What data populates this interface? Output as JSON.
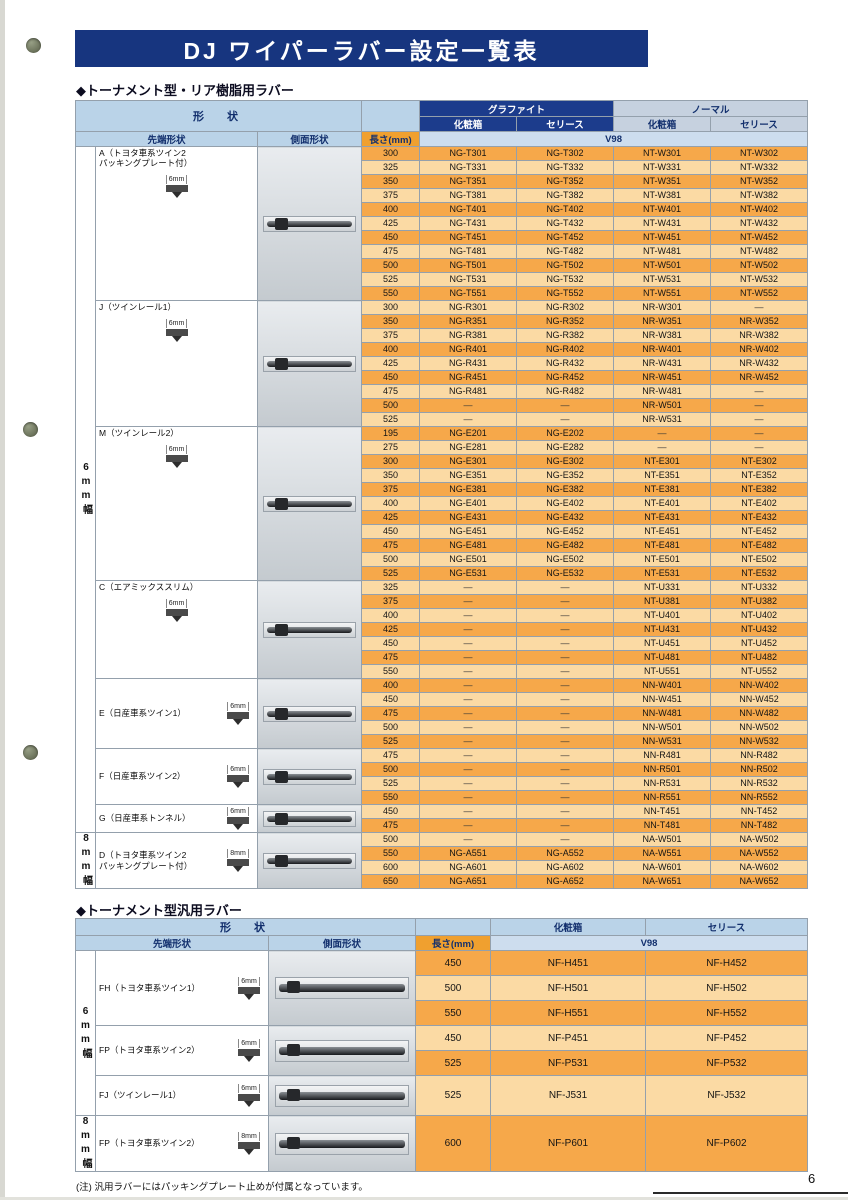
{
  "page": {
    "title": "DJ ワイパーラバー設定一覧表",
    "page_number": "6",
    "footnote": "(注) 汎用ラバーにはパッキングプレート止めが付属となっています。"
  },
  "colors": {
    "banner": "#17357f",
    "header_dark_blue": "#1c3c8c",
    "header_light_blue": "#bad3e8",
    "header_orange": "#f0a02f",
    "row_orange": "#f6a84a",
    "row_light": "#fbdaa4"
  },
  "table1": {
    "section_title": "◆トーナメント型・リア樹脂用ラバー",
    "headers": {
      "shape": "形　状",
      "tip": "先端形状",
      "side": "側面形状",
      "length": "長さ(mm)",
      "graphite": "グラファイト",
      "normal": "ノーマル",
      "box": "化粧箱",
      "series": "セリース",
      "v98": "V98"
    },
    "width_groups": [
      {
        "label": "6mm幅",
        "rows": 49
      },
      {
        "label": "8mm幅",
        "rows": 4
      }
    ],
    "groups": [
      {
        "id": "A",
        "label": "A（トヨタ車系ツイン2",
        "label2": "パッキングプレート付）",
        "mm": "6mm",
        "rows": [
          [
            "300",
            "NG-T301",
            "NG-T302",
            "NT-W301",
            "NT-W302"
          ],
          [
            "325",
            "NG-T331",
            "NG-T332",
            "NT-W331",
            "NT-W332"
          ],
          [
            "350",
            "NG-T351",
            "NG-T352",
            "NT-W351",
            "NT-W352"
          ],
          [
            "375",
            "NG-T381",
            "NG-T382",
            "NT-W381",
            "NT-W382"
          ],
          [
            "400",
            "NG-T401",
            "NG-T402",
            "NT-W401",
            "NT-W402"
          ],
          [
            "425",
            "NG-T431",
            "NG-T432",
            "NT-W431",
            "NT-W432"
          ],
          [
            "450",
            "NG-T451",
            "NG-T452",
            "NT-W451",
            "NT-W452"
          ],
          [
            "475",
            "NG-T481",
            "NG-T482",
            "NT-W481",
            "NT-W482"
          ],
          [
            "500",
            "NG-T501",
            "NG-T502",
            "NT-W501",
            "NT-W502"
          ],
          [
            "525",
            "NG-T531",
            "NG-T532",
            "NT-W531",
            "NT-W532"
          ],
          [
            "550",
            "NG-T551",
            "NG-T552",
            "NT-W551",
            "NT-W552"
          ]
        ]
      },
      {
        "id": "J",
        "label": "J（ツインレール1）",
        "mm": "6mm",
        "rows": [
          [
            "300",
            "NG-R301",
            "NG-R302",
            "NR-W301",
            "―"
          ],
          [
            "350",
            "NG-R351",
            "NG-R352",
            "NR-W351",
            "NR-W352"
          ],
          [
            "375",
            "NG-R381",
            "NG-R382",
            "NR-W381",
            "NR-W382"
          ],
          [
            "400",
            "NG-R401",
            "NG-R402",
            "NR-W401",
            "NR-W402"
          ],
          [
            "425",
            "NG-R431",
            "NG-R432",
            "NR-W431",
            "NR-W432"
          ],
          [
            "450",
            "NG-R451",
            "NG-R452",
            "NR-W451",
            "NR-W452"
          ],
          [
            "475",
            "NG-R481",
            "NG-R482",
            "NR-W481",
            "―"
          ],
          [
            "500",
            "―",
            "―",
            "NR-W501",
            "―"
          ],
          [
            "525",
            "―",
            "―",
            "NR-W531",
            "―"
          ]
        ]
      },
      {
        "id": "M",
        "label": "M（ツインレール2）",
        "mm": "6mm",
        "rows": [
          [
            "195",
            "NG-E201",
            "NG-E202",
            "―",
            "―"
          ],
          [
            "275",
            "NG-E281",
            "NG-E282",
            "―",
            "―"
          ],
          [
            "300",
            "NG-E301",
            "NG-E302",
            "NT-E301",
            "NT-E302"
          ],
          [
            "350",
            "NG-E351",
            "NG-E352",
            "NT-E351",
            "NT-E352"
          ],
          [
            "375",
            "NG-E381",
            "NG-E382",
            "NT-E381",
            "NT-E382"
          ],
          [
            "400",
            "NG-E401",
            "NG-E402",
            "NT-E401",
            "NT-E402"
          ],
          [
            "425",
            "NG-E431",
            "NG-E432",
            "NT-E431",
            "NT-E432"
          ],
          [
            "450",
            "NG-E451",
            "NG-E452",
            "NT-E451",
            "NT-E452"
          ],
          [
            "475",
            "NG-E481",
            "NG-E482",
            "NT-E481",
            "NT-E482"
          ],
          [
            "500",
            "NG-E501",
            "NG-E502",
            "NT-E501",
            "NT-E502"
          ],
          [
            "525",
            "NG-E531",
            "NG-E532",
            "NT-E531",
            "NT-E532"
          ]
        ]
      },
      {
        "id": "C",
        "label": "C（エアミックススリム）",
        "mm": "6mm",
        "rows": [
          [
            "325",
            "―",
            "―",
            "NT-U331",
            "NT-U332"
          ],
          [
            "375",
            "―",
            "―",
            "NT-U381",
            "NT-U382"
          ],
          [
            "400",
            "―",
            "―",
            "NT-U401",
            "NT-U402"
          ],
          [
            "425",
            "―",
            "―",
            "NT-U431",
            "NT-U432"
          ],
          [
            "450",
            "―",
            "―",
            "NT-U451",
            "NT-U452"
          ],
          [
            "475",
            "―",
            "―",
            "NT-U481",
            "NT-U482"
          ],
          [
            "550",
            "―",
            "―",
            "NT-U551",
            "NT-U552"
          ]
        ]
      },
      {
        "id": "E",
        "label": "E（日産車系ツイン1）",
        "mm": "6mm",
        "rows": [
          [
            "400",
            "―",
            "―",
            "NN-W401",
            "NN-W402"
          ],
          [
            "450",
            "―",
            "―",
            "NN-W451",
            "NN-W452"
          ],
          [
            "475",
            "―",
            "―",
            "NN-W481",
            "NN-W482"
          ],
          [
            "500",
            "―",
            "―",
            "NN-W501",
            "NN-W502"
          ],
          [
            "525",
            "―",
            "―",
            "NN-W531",
            "NN-W532"
          ]
        ]
      },
      {
        "id": "F",
        "label": "F（日産車系ツイン2）",
        "mm": "6mm",
        "rows": [
          [
            "475",
            "―",
            "―",
            "NN-R481",
            "NN-R482"
          ],
          [
            "500",
            "―",
            "―",
            "NN-R501",
            "NN-R502"
          ],
          [
            "525",
            "―",
            "―",
            "NN-R531",
            "NN-R532"
          ],
          [
            "550",
            "―",
            "―",
            "NN-R551",
            "NN-R552"
          ]
        ]
      },
      {
        "id": "G",
        "label": "G（日産車系トンネル）",
        "mm": "6mm",
        "rows": [
          [
            "450",
            "―",
            "―",
            "NN-T451",
            "NN-T452"
          ],
          [
            "475",
            "―",
            "―",
            "NN-T481",
            "NN-T482"
          ]
        ]
      },
      {
        "id": "D",
        "label": "D（トヨタ車系ツイン2",
        "label2": "パッキングプレート付）",
        "mm": "8mm",
        "rows": [
          [
            "500",
            "―",
            "―",
            "NA-W501",
            "NA-W502"
          ],
          [
            "550",
            "NG-A551",
            "NG-A552",
            "NA-W551",
            "NA-W552"
          ],
          [
            "600",
            "NG-A601",
            "NG-A602",
            "NA-W601",
            "NA-W602"
          ],
          [
            "650",
            "NG-A651",
            "NG-A652",
            "NA-W651",
            "NA-W652"
          ]
        ]
      }
    ]
  },
  "table2": {
    "section_title": "◆トーナメント型汎用ラバー",
    "headers": {
      "shape": "形　状",
      "tip": "先端形状",
      "side": "側面形状",
      "length": "長さ(mm)",
      "box": "化粧箱",
      "series": "セリース",
      "v98": "V98"
    },
    "width_groups": [
      {
        "label": "6mm幅",
        "rows": 6
      },
      {
        "label": "8mm幅",
        "rows": 1
      }
    ],
    "groups": [
      {
        "id": "FH",
        "label": "FH（トヨタ車系ツイン1）",
        "mm": "6mm",
        "rows": [
          [
            "450",
            "NF-H451",
            "NF-H452"
          ],
          [
            "500",
            "NF-H501",
            "NF-H502"
          ],
          [
            "550",
            "NF-H551",
            "NF-H552"
          ]
        ]
      },
      {
        "id": "FP",
        "label": "FP（トヨタ車系ツイン2）",
        "mm": "6mm",
        "rows": [
          [
            "450",
            "NF-P451",
            "NF-P452"
          ],
          [
            "525",
            "NF-P531",
            "NF-P532"
          ]
        ]
      },
      {
        "id": "FJ",
        "label": "FJ（ツインレール1）",
        "mm": "6mm",
        "rows": [
          [
            "525",
            "NF-J531",
            "NF-J532"
          ]
        ]
      },
      {
        "id": "FP8",
        "label": "FP（トヨタ車系ツイン2）",
        "mm": "8mm",
        "rows": [
          [
            "600",
            "NF-P601",
            "NF-P602"
          ]
        ]
      }
    ]
  }
}
